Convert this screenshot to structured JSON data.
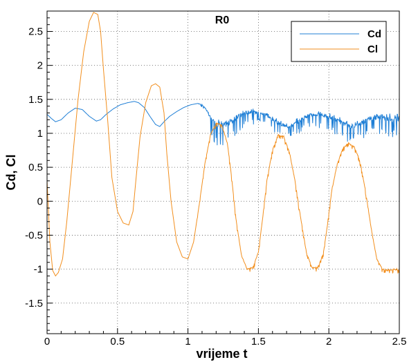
{
  "chart_data": {
    "type": "line",
    "title": "R0",
    "xlabel": "vrijeme t",
    "ylabel": "Cd, Cl",
    "xlim": [
      0,
      2.5
    ],
    "ylim": [
      -1.95,
      2.8
    ],
    "grid": true,
    "legend_position": "top-right",
    "x_ticks": [
      {
        "value": 0,
        "label": "0"
      },
      {
        "value": 0.5,
        "label": "0.5"
      },
      {
        "value": 1,
        "label": "1"
      },
      {
        "value": 1.5,
        "label": "1.5"
      },
      {
        "value": 2,
        "label": "2"
      },
      {
        "value": 2.5,
        "label": "2.5"
      }
    ],
    "y_ticks": [
      {
        "value": 2.5,
        "label": "2.5"
      },
      {
        "value": 2,
        "label": "2"
      },
      {
        "value": 1.5,
        "label": "1.5"
      },
      {
        "value": 1,
        "label": "1"
      },
      {
        "value": 0.5,
        "label": "0.5"
      },
      {
        "value": 0,
        "label": "0"
      },
      {
        "value": -0.5,
        "label": "-0.5"
      },
      {
        "value": -1,
        "label": "-1"
      },
      {
        "value": -1.5,
        "label": "-1.5"
      }
    ],
    "series": [
      {
        "name": "Cd",
        "color": "#1f7fd6",
        "x": [
          0,
          0.03,
          0.06,
          0.1,
          0.15,
          0.2,
          0.25,
          0.3,
          0.35,
          0.38,
          0.42,
          0.47,
          0.52,
          0.57,
          0.62,
          0.65,
          0.69,
          0.73,
          0.77,
          0.8,
          0.83,
          0.87,
          0.92,
          0.97,
          1.02,
          1.07,
          1.1,
          1.13,
          1.16,
          1.2,
          1.25,
          1.3,
          1.35,
          1.4,
          1.45,
          1.5,
          1.55,
          1.6,
          1.65,
          1.7,
          1.75,
          1.8,
          1.85,
          1.9,
          1.95,
          2.0,
          2.05,
          2.1,
          2.15,
          2.2,
          2.25,
          2.3,
          2.35,
          2.4,
          2.45,
          2.5
        ],
        "y": [
          1.28,
          1.22,
          1.17,
          1.2,
          1.3,
          1.37,
          1.35,
          1.25,
          1.18,
          1.2,
          1.28,
          1.36,
          1.42,
          1.45,
          1.47,
          1.45,
          1.38,
          1.25,
          1.13,
          1.1,
          1.17,
          1.25,
          1.32,
          1.38,
          1.42,
          1.44,
          1.42,
          1.35,
          1.22,
          1.14,
          1.12,
          1.16,
          1.24,
          1.3,
          1.32,
          1.3,
          1.28,
          1.2,
          1.14,
          1.1,
          1.13,
          1.2,
          1.26,
          1.28,
          1.27,
          1.24,
          1.2,
          1.14,
          1.1,
          1.12,
          1.18,
          1.22,
          1.24,
          1.22,
          1.2,
          1.22
        ],
        "noise": [
          0,
          0,
          0,
          0,
          0,
          0,
          0,
          0,
          0,
          0,
          0,
          0,
          0,
          0,
          0,
          0,
          0,
          0,
          0,
          0,
          0,
          0,
          0,
          0,
          0,
          0,
          0.02,
          0.04,
          0.12,
          0.16,
          0.16,
          0.16,
          0.14,
          0.12,
          0.1,
          0.08,
          0.08,
          0.08,
          0.1,
          0.1,
          0.1,
          0.1,
          0.1,
          0.1,
          0.1,
          0.1,
          0.12,
          0.12,
          0.12,
          0.12,
          0.14,
          0.14,
          0.14,
          0.14,
          0.14,
          0.14
        ]
      },
      {
        "name": "Cl",
        "color": "#f28e1c",
        "x": [
          0,
          0.02,
          0.04,
          0.06,
          0.08,
          0.11,
          0.14,
          0.18,
          0.22,
          0.26,
          0.3,
          0.33,
          0.36,
          0.38,
          0.4,
          0.43,
          0.46,
          0.5,
          0.54,
          0.58,
          0.61,
          0.63,
          0.66,
          0.7,
          0.74,
          0.77,
          0.8,
          0.83,
          0.85,
          0.88,
          0.92,
          0.96,
          1.0,
          1.04,
          1.08,
          1.12,
          1.16,
          1.2,
          1.24,
          1.28,
          1.31,
          1.34,
          1.38,
          1.42,
          1.46,
          1.5,
          1.53,
          1.56,
          1.6,
          1.64,
          1.68,
          1.72,
          1.76,
          1.8,
          1.84,
          1.88,
          1.92,
          1.96,
          1.99,
          2.02,
          2.06,
          2.1,
          2.14,
          2.18,
          2.22,
          2.26,
          2.3,
          2.34,
          2.38,
          2.42,
          2.46,
          2.5
        ],
        "y": [
          0.3,
          -0.6,
          -1.02,
          -1.1,
          -1.05,
          -0.85,
          -0.3,
          0.6,
          1.5,
          2.2,
          2.65,
          2.78,
          2.75,
          2.5,
          1.95,
          1.2,
          0.35,
          -0.15,
          -0.32,
          -0.35,
          -0.15,
          0.3,
          0.95,
          1.45,
          1.7,
          1.73,
          1.68,
          1.3,
          0.7,
          0.0,
          -0.6,
          -0.82,
          -0.85,
          -0.6,
          -0.05,
          0.55,
          0.98,
          1.15,
          1.12,
          0.85,
          0.35,
          -0.25,
          -0.8,
          -1.0,
          -0.98,
          -0.75,
          -0.25,
          0.3,
          0.75,
          0.97,
          0.95,
          0.72,
          0.3,
          -0.25,
          -0.75,
          -0.98,
          -0.98,
          -0.78,
          -0.35,
          0.15,
          0.55,
          0.78,
          0.85,
          0.8,
          0.6,
          0.15,
          -0.4,
          -0.85,
          -1.0,
          -1.02,
          -1.0,
          -1.02
        ],
        "noise": [
          0,
          0,
          0,
          0,
          0,
          0,
          0,
          0,
          0,
          0,
          0,
          0,
          0,
          0,
          0,
          0,
          0,
          0,
          0,
          0,
          0,
          0,
          0,
          0,
          0,
          0,
          0,
          0,
          0,
          0,
          0,
          0,
          0,
          0,
          0.02,
          0.02,
          0.03,
          0.03,
          0.03,
          0.03,
          0.03,
          0.03,
          0.03,
          0.03,
          0.03,
          0.03,
          0.03,
          0.03,
          0.03,
          0.03,
          0.03,
          0.03,
          0.03,
          0.03,
          0.03,
          0.03,
          0.03,
          0.03,
          0.03,
          0.03,
          0.03,
          0.03,
          0.03,
          0.03,
          0.03,
          0.03,
          0.03,
          0.03,
          0.03,
          0.03,
          0.03,
          0.03
        ]
      }
    ]
  }
}
